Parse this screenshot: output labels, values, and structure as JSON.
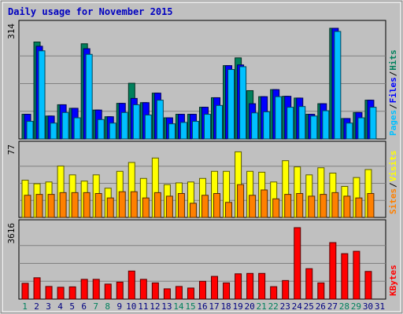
{
  "title": "Daily usage for November 2015",
  "colors": {
    "background": "#c0c0c0",
    "frame": "#000000",
    "hits": "#00805c",
    "files": "#0000ff",
    "pages": "#00c0ff",
    "visits": "#ffff00",
    "sites": "#ff8000",
    "kbytes": "#ff0000",
    "weekday_label": "#000080",
    "weekend_label": "#00805c"
  },
  "chart_data": [
    {
      "type": "bar",
      "name": "hits-files-pages",
      "ymax_label": "314",
      "ylim": [
        0,
        314
      ],
      "x": [
        "1",
        "2",
        "3",
        "4",
        "5",
        "6",
        "7",
        "8",
        "9",
        "10",
        "11",
        "12",
        "13",
        "14",
        "15",
        "16",
        "17",
        "18",
        "19",
        "20",
        "21",
        "22",
        "23",
        "24",
        "25",
        "26",
        "27",
        "28",
        "29",
        "30"
      ],
      "series": [
        {
          "name": "Hits",
          "values": [
            70,
            275,
            65,
            97,
            87,
            270,
            82,
            63,
            101,
            158,
            103,
            130,
            60,
            70,
            70,
            90,
            117,
            208,
            230,
            137,
            120,
            140,
            121,
            116,
            70,
            100,
            314,
            58,
            75,
            110
          ]
        },
        {
          "name": "Files",
          "values": [
            70,
            263,
            65,
            97,
            87,
            256,
            82,
            63,
            101,
            115,
            103,
            130,
            60,
            70,
            70,
            90,
            117,
            208,
            210,
            100,
            120,
            140,
            121,
            116,
            70,
            100,
            314,
            58,
            75,
            110
          ]
        },
        {
          "name": "Pages",
          "values": [
            50,
            250,
            45,
            75,
            60,
            240,
            55,
            45,
            75,
            97,
            68,
            110,
            43,
            47,
            50,
            70,
            95,
            197,
            205,
            74,
            77,
            120,
            90,
            92,
            65,
            80,
            305,
            45,
            60,
            90
          ]
        }
      ],
      "legend": [
        "Pages",
        "/",
        "Files",
        "/",
        "Hits"
      ]
    },
    {
      "type": "bar",
      "name": "visits-sites",
      "ymax_label": "77",
      "ylim": [
        0,
        77
      ],
      "x": [
        "1",
        "2",
        "3",
        "4",
        "5",
        "6",
        "7",
        "8",
        "9",
        "10",
        "11",
        "12",
        "13",
        "14",
        "15",
        "16",
        "17",
        "18",
        "19",
        "20",
        "21",
        "22",
        "23",
        "24",
        "25",
        "26",
        "27",
        "28",
        "29",
        "30"
      ],
      "series": [
        {
          "name": "Visits",
          "values": [
            42,
            38,
            40,
            58,
            48,
            41,
            48,
            33,
            52,
            62,
            44,
            67,
            37,
            39,
            40,
            44,
            52,
            52,
            74,
            52,
            51,
            40,
            64,
            57,
            48,
            56,
            50,
            35,
            45,
            54
          ]
        },
        {
          "name": "Sites",
          "values": [
            25,
            26,
            26,
            28,
            28,
            28,
            27,
            22,
            29,
            29,
            22,
            28,
            24,
            27,
            16,
            25,
            27,
            17,
            37,
            25,
            31,
            21,
            26,
            27,
            24,
            26,
            28,
            24,
            22,
            27
          ]
        }
      ],
      "legend": [
        "Sites",
        "/",
        "Visits"
      ]
    },
    {
      "type": "bar",
      "name": "kbytes",
      "ymax_label": "3616",
      "ylim": [
        0,
        3616
      ],
      "x": [
        "1",
        "2",
        "3",
        "4",
        "5",
        "6",
        "7",
        "8",
        "9",
        "10",
        "11",
        "12",
        "13",
        "14",
        "15",
        "16",
        "17",
        "18",
        "19",
        "20",
        "21",
        "22",
        "23",
        "24",
        "25",
        "26",
        "27",
        "28",
        "29",
        "30"
      ],
      "series": [
        {
          "name": "KBytes",
          "values": [
            800,
            1080,
            640,
            600,
            620,
            1000,
            1000,
            760,
            860,
            1420,
            1000,
            820,
            520,
            640,
            560,
            900,
            1150,
            820,
            1280,
            1300,
            1300,
            630,
            940,
            3616,
            1540,
            820,
            2860,
            2300,
            2420,
            1400
          ]
        }
      ],
      "legend": [
        "KBytes"
      ]
    }
  ],
  "x_axis": {
    "labels": [
      "1",
      "2",
      "3",
      "4",
      "5",
      "6",
      "7",
      "8",
      "9",
      "10",
      "11",
      "12",
      "13",
      "14",
      "15",
      "16",
      "17",
      "18",
      "19",
      "20",
      "21",
      "22",
      "23",
      "24",
      "25",
      "26",
      "27",
      "28",
      "29",
      "30",
      "31"
    ],
    "weekend": [
      "1",
      "7",
      "8",
      "14",
      "15",
      "21",
      "22",
      "28",
      "29"
    ]
  }
}
